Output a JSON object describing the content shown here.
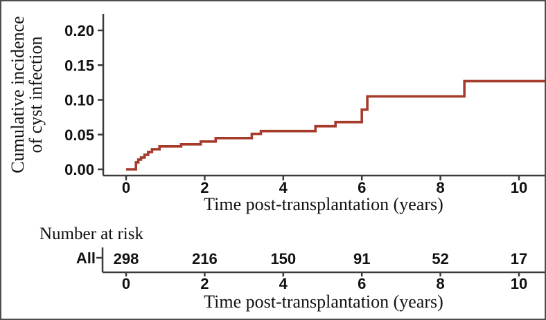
{
  "figure": {
    "background": "#ffffff",
    "border_color": "#4d4d4d"
  },
  "chart_data": {
    "type": "line",
    "subtype": "step-cumulative-incidence",
    "title": "",
    "ylabel_line1": "Cumulative incidence",
    "ylabel_line2": "of cyst infection",
    "xlabel": "Time post-transplantation (years)",
    "x_ticks": [
      0,
      2,
      4,
      6,
      8,
      10
    ],
    "y_ticks": [
      "0.00",
      "0.05",
      "0.10",
      "0.15",
      "0.20"
    ],
    "xlim": [
      0,
      10.65
    ],
    "ylim": [
      0,
      0.205
    ],
    "grid": false,
    "legend_position": "none",
    "curve_color": "#A63A2B",
    "series": [
      {
        "name": "All",
        "color": "#A63A2B",
        "points": [
          [
            0,
            0.0
          ],
          [
            0.25,
            0.01
          ],
          [
            0.31,
            0.014
          ],
          [
            0.38,
            0.017
          ],
          [
            0.47,
            0.021
          ],
          [
            0.56,
            0.025
          ],
          [
            0.66,
            0.029
          ],
          [
            0.85,
            0.033
          ],
          [
            1.4,
            0.036
          ],
          [
            1.9,
            0.04
          ],
          [
            2.28,
            0.045
          ],
          [
            3.2,
            0.051
          ],
          [
            3.43,
            0.055
          ],
          [
            4.82,
            0.062
          ],
          [
            5.33,
            0.068
          ],
          [
            6.0,
            0.086
          ],
          [
            6.14,
            0.105
          ],
          [
            8.61,
            0.127
          ]
        ]
      }
    ]
  },
  "risk_table": {
    "title": "Number at risk",
    "row_label": "All",
    "row_label_color": "#A63A2B",
    "times": [
      0,
      2,
      4,
      6,
      8,
      10
    ],
    "counts": [
      298,
      216,
      150,
      91,
      52,
      17
    ],
    "xlabel": "Time post-transplantation (years)"
  }
}
